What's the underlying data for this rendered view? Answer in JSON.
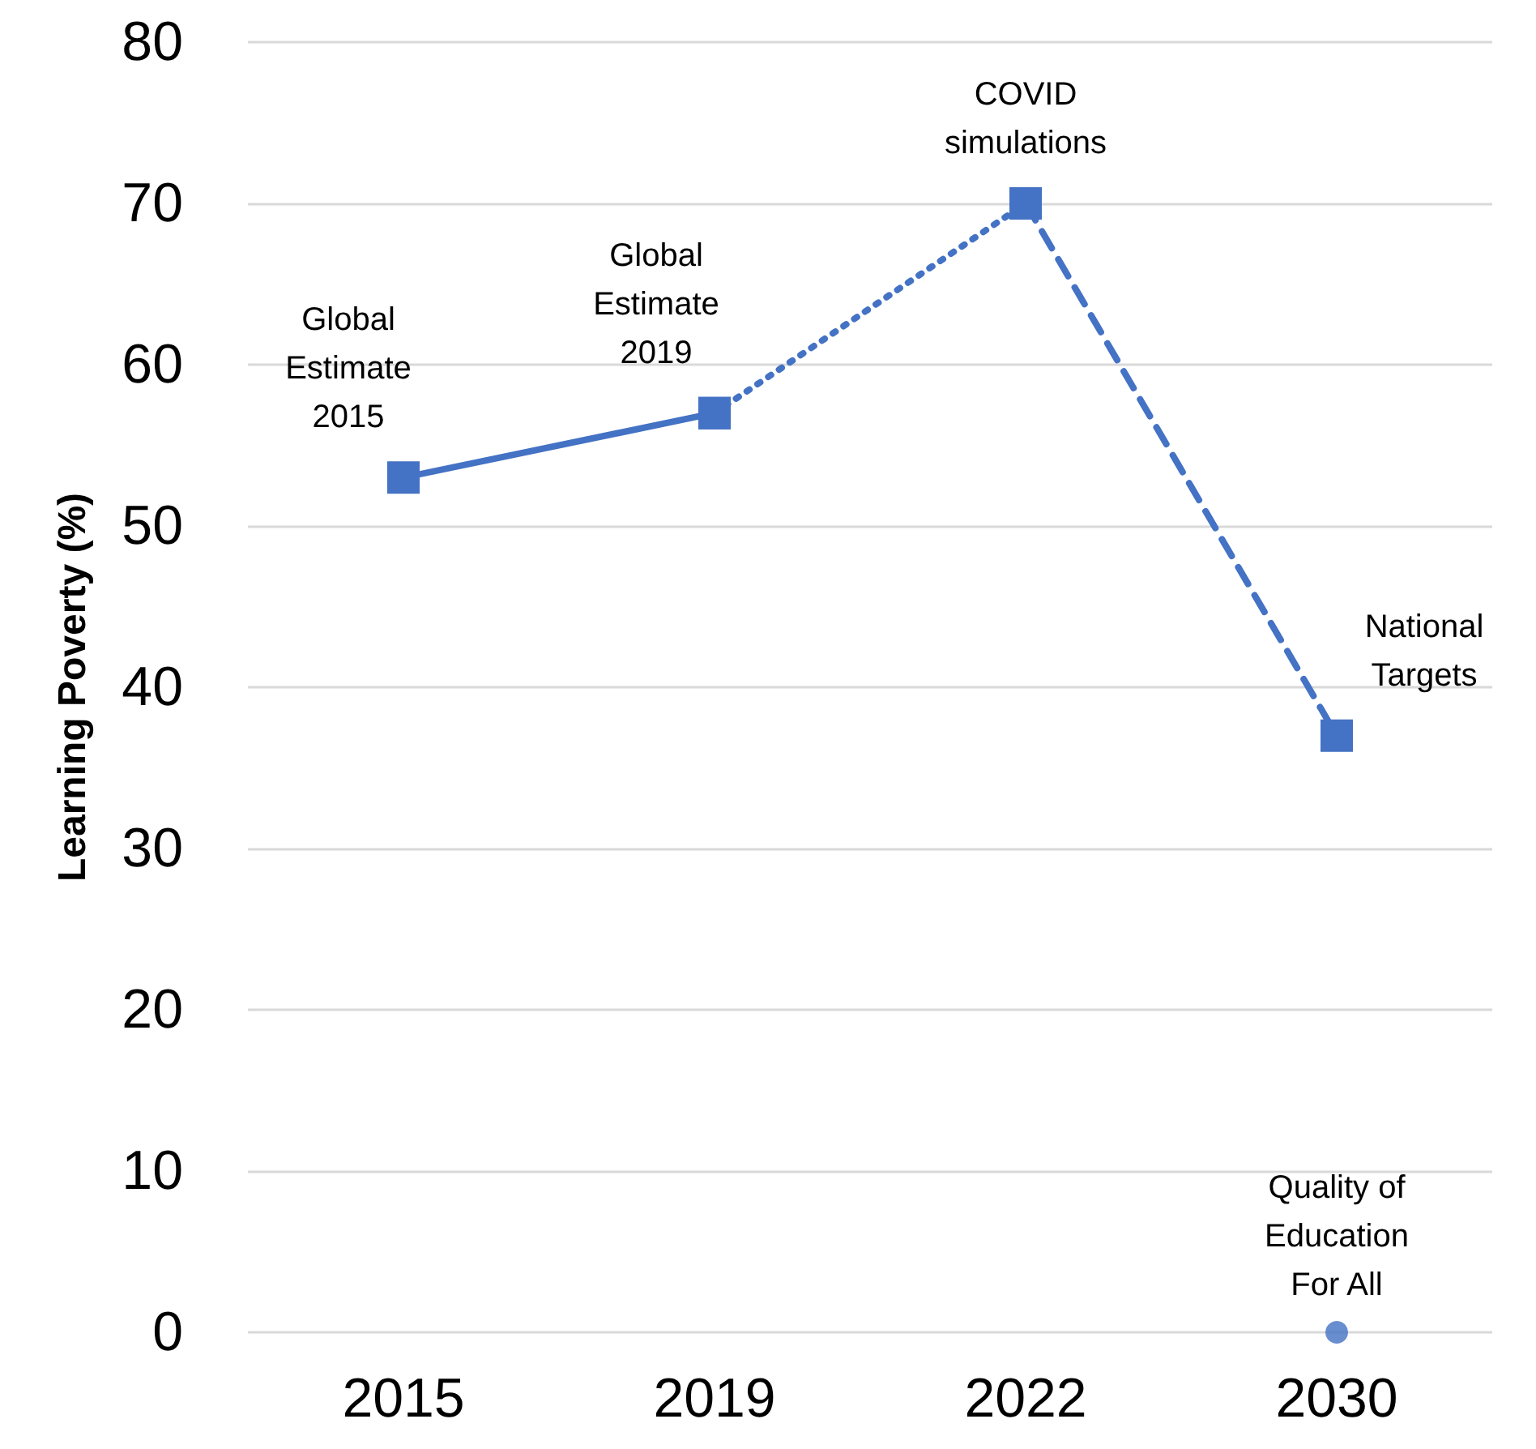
{
  "chart_data": {
    "type": "line",
    "ylabel": "Learning Poverty (%)",
    "categories": [
      "2015",
      "2019",
      "2022",
      "2030"
    ],
    "series": [
      {
        "type": "line",
        "color": "#4472c4",
        "values": [
          53,
          57,
          null,
          null
        ],
        "line_style": "solid",
        "marker": "square"
      },
      {
        "type": "line",
        "color": "#4472c4",
        "values": [
          null,
          57,
          70,
          null
        ],
        "line_style": "dotted",
        "marker": "square"
      },
      {
        "type": "line",
        "color": "#4472c4",
        "values": [
          null,
          null,
          70,
          37
        ],
        "line_style": "dashed",
        "marker": "square"
      },
      {
        "type": "scatter",
        "color": "#4472c4",
        "values": [
          null,
          null,
          null,
          0
        ],
        "marker": "circle"
      }
    ],
    "ylim": [
      0,
      80
    ],
    "yticks": [
      0,
      10,
      20,
      30,
      40,
      50,
      60,
      70,
      80
    ],
    "grid": "y",
    "annotations": [
      {
        "text": "Global\nEstimate\n2015",
        "x": "2015",
        "y": 53
      },
      {
        "text": "Global\nEstimate\n2019",
        "x": "2019",
        "y": 57
      },
      {
        "text": "COVID\nsimulations",
        "x": "2022",
        "y": 70
      },
      {
        "text": "National\nTargets",
        "x": "2030",
        "y": 37
      },
      {
        "text": "Quality of\nEducation\nFor All",
        "x": "2030",
        "y": 0
      }
    ]
  }
}
